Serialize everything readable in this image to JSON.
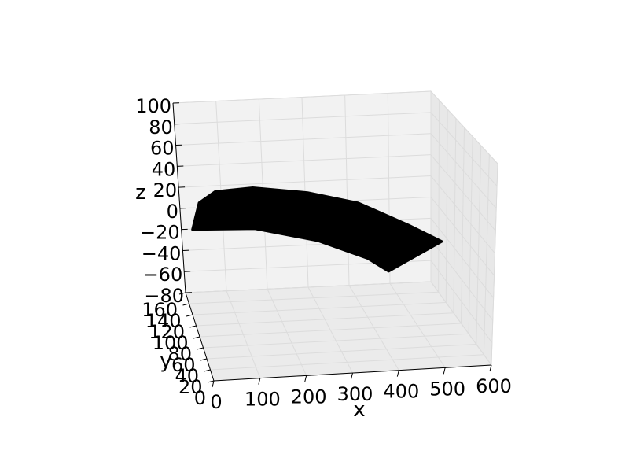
{
  "chart_data": {
    "type": "surface",
    "title": "",
    "xlabel": "x",
    "ylabel": "y",
    "zlabel": "z",
    "xlim": [
      0,
      600
    ],
    "ylim": [
      0,
      160
    ],
    "zlim": [
      -80,
      100
    ],
    "x_ticks": [
      "0",
      "100",
      "200",
      "300",
      "400",
      "500",
      "600"
    ],
    "y_ticks": [
      "0",
      "20",
      "40",
      "60",
      "80",
      "100",
      "120",
      "140",
      "160"
    ],
    "z_ticks": [
      "−80",
      "−60",
      "−40",
      "−20",
      "0",
      "20",
      "40",
      "60",
      "80",
      "100"
    ],
    "grid": true,
    "surface_color": "#000000",
    "pane_color": "#f2f2f2",
    "surface_edge": [
      {
        "x": 0,
        "z": -20
      },
      {
        "x": 20,
        "z": 5
      },
      {
        "x": 60,
        "z": 15
      },
      {
        "x": 150,
        "z": 17
      },
      {
        "x": 280,
        "z": 10
      },
      {
        "x": 400,
        "z": -2
      },
      {
        "x": 520,
        "z": -25
      },
      {
        "x": 600,
        "z": -42
      }
    ],
    "surface_lower_edge": [
      {
        "x": 0,
        "z": -20
      },
      {
        "x": 150,
        "z": -22
      },
      {
        "x": 300,
        "z": -36
      },
      {
        "x": 420,
        "z": -55
      },
      {
        "x": 470,
        "z": -68
      }
    ]
  }
}
